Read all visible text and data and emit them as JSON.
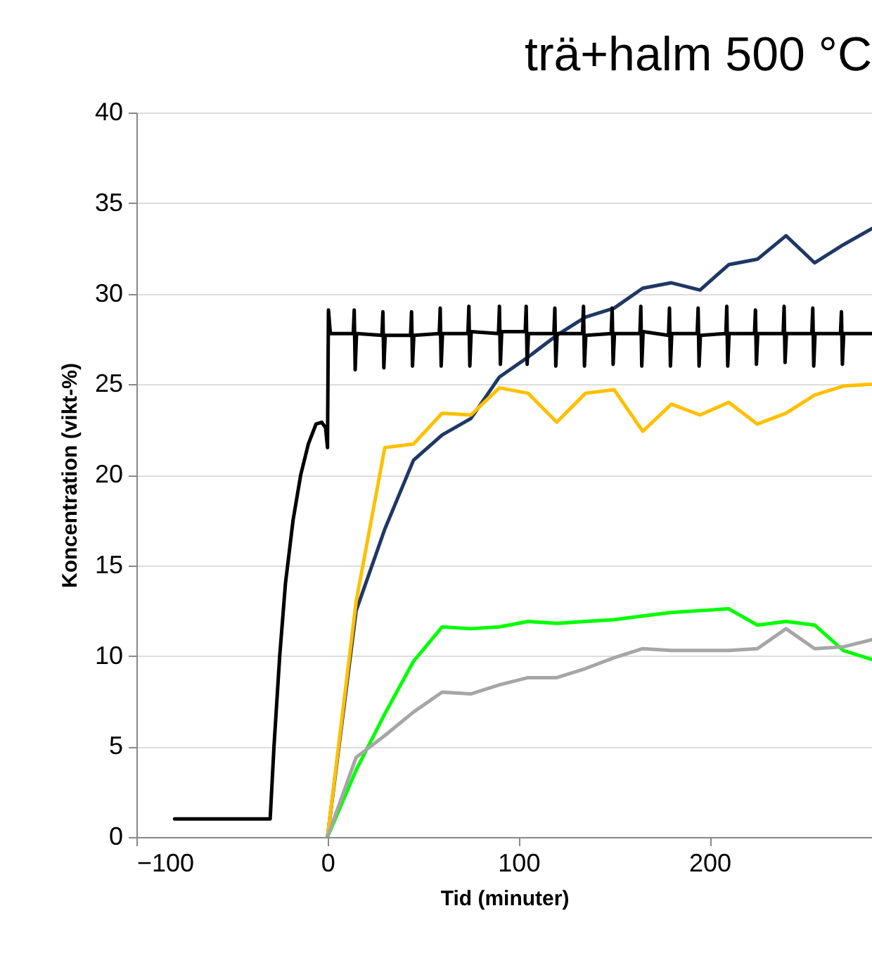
{
  "chart_data": {
    "type": "line",
    "title": "trä+halm 500 °C",
    "xlabel": "Tid (minuter)",
    "ylabel": "Koncentration (vikt-%)",
    "x": [
      0,
      15,
      30,
      45,
      60,
      75,
      90,
      105,
      120,
      135,
      150,
      165,
      180,
      195,
      210,
      225,
      240,
      255,
      270,
      285
    ],
    "series": [
      {
        "color": "#1f3864",
        "values": [
          0,
          12.5,
          17,
          20.8,
          22.2,
          23.1,
          25.4,
          26.5,
          27.7,
          28.7,
          29.2,
          30.3,
          30.6,
          30.2,
          31.6,
          31.9,
          33.2,
          31.7,
          32.7,
          33.6
        ]
      },
      {
        "color": "#ffc000",
        "values": [
          0,
          13,
          21.5,
          21.7,
          23.4,
          23.3,
          24.8,
          24.5,
          22.9,
          24.5,
          24.7,
          22.4,
          23.9,
          23.3,
          24.0,
          22.8,
          23.4,
          24.4,
          24.9,
          25.0
        ]
      },
      {
        "color": "#00ff00",
        "values": [
          0,
          3.7,
          6.8,
          9.7,
          11.6,
          11.5,
          11.6,
          11.9,
          11.8,
          11.9,
          12.0,
          12.2,
          12.4,
          12.5,
          12.6,
          11.7,
          11.9,
          11.7,
          10.3,
          9.8
        ]
      },
      {
        "color": "#a6a6a6",
        "values": [
          0,
          4.4,
          5.6,
          6.9,
          8.0,
          7.9,
          8.4,
          8.8,
          8.8,
          9.3,
          9.9,
          10.4,
          10.3,
          10.3,
          10.3,
          10.4,
          11.5,
          10.4,
          10.5,
          10.9
        ]
      },
      {
        "color": "#000000",
        "x": [
          -80,
          -30,
          -28,
          -25,
          -22,
          -18,
          -14,
          -10,
          -6,
          -3,
          -1,
          0,
          0.5,
          1.5,
          13.5,
          14,
          14.5,
          15.2,
          28.5,
          29,
          29.5,
          30.2,
          43.5,
          44,
          44.5,
          45.2,
          58.5,
          59,
          59.5,
          60.2,
          73.5,
          74,
          74.5,
          75.2,
          89.5,
          90,
          90.5,
          91.2,
          103.5,
          104,
          104.5,
          105.2,
          118.5,
          119,
          119.5,
          120.2,
          133.5,
          134,
          134.5,
          135.2,
          148.5,
          149,
          149.5,
          150.2,
          163.5,
          164,
          164.5,
          165.2,
          178.5,
          179,
          179.5,
          180.2,
          193.5,
          194,
          194.5,
          195.2,
          208.5,
          209,
          209.5,
          210.2,
          223.5,
          224,
          224.5,
          225.2,
          238.5,
          239,
          239.5,
          240.2,
          253.5,
          254,
          254.5,
          255.2,
          268.5,
          269,
          269.5,
          270.2,
          285
        ],
        "values": [
          1.0,
          1.0,
          5,
          10,
          14,
          17.5,
          20,
          21.7,
          22.8,
          22.9,
          22.6,
          21.5,
          29.1,
          27.8,
          27.8,
          29.1,
          25.8,
          27.8,
          27.7,
          29.0,
          25.9,
          27.7,
          27.7,
          29.0,
          26.0,
          27.7,
          27.8,
          29.2,
          26.0,
          27.8,
          27.8,
          29.3,
          26.0,
          27.9,
          27.8,
          29.3,
          26.1,
          27.9,
          27.9,
          29.3,
          26.1,
          27.8,
          27.8,
          29.2,
          26.0,
          27.8,
          27.8,
          29.3,
          26.0,
          27.7,
          27.8,
          29.2,
          26.1,
          27.8,
          27.8,
          29.3,
          26.0,
          27.9,
          27.7,
          29.2,
          26.0,
          27.8,
          27.8,
          29.2,
          26.0,
          27.7,
          27.8,
          29.3,
          26.0,
          27.8,
          27.8,
          29.1,
          26.1,
          27.8,
          27.8,
          29.3,
          26.2,
          27.8,
          27.8,
          29.2,
          26.0,
          27.8,
          27.8,
          29.0,
          26.1,
          27.8,
          27.8
        ]
      }
    ],
    "xlim": [
      -100,
      285
    ],
    "xticks": [
      -100,
      0,
      100,
      200
    ],
    "ylim": [
      0,
      40
    ],
    "yticks": [
      0,
      5,
      10,
      15,
      20,
      25,
      30,
      35,
      40
    ],
    "grid": "y",
    "legend": false,
    "marker": "none",
    "line_style": "solid"
  }
}
